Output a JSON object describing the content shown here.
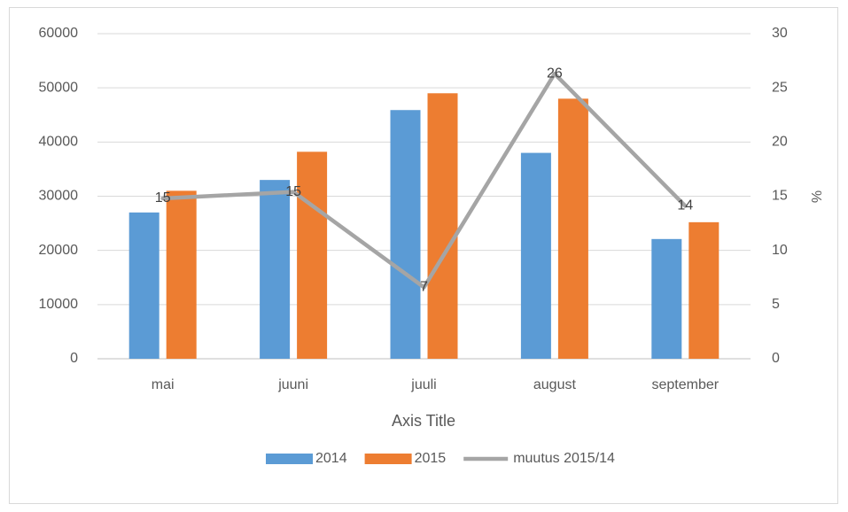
{
  "chart_data": {
    "type": "bar_line",
    "categories": [
      "mai",
      "juuni",
      "juuli",
      "august",
      "september"
    ],
    "x_axis_title": "Axis Title",
    "y2_axis_title": "%",
    "series": [
      {
        "name": "2014",
        "type": "bar",
        "color": "#5b9bd5",
        "values": [
          27000,
          33000,
          45900,
          38000,
          22100
        ]
      },
      {
        "name": "2015",
        "type": "bar",
        "color": "#ed7d31",
        "values": [
          31000,
          38200,
          49000,
          48000,
          25200
        ]
      },
      {
        "name": "muutus 2015/14",
        "type": "line",
        "axis": "y2",
        "color": "#a5a5a5",
        "values": [
          14.8,
          15.4,
          6.6,
          26.3,
          14.1
        ],
        "value_labels": [
          "15",
          "15",
          "7",
          "26",
          "14"
        ]
      }
    ],
    "ylim": [
      0,
      60000
    ],
    "yticks": [
      0,
      10000,
      20000,
      30000,
      40000,
      50000,
      60000
    ],
    "y2lim": [
      0,
      30
    ],
    "y2ticks": [
      0,
      5,
      10,
      15,
      20,
      25,
      30
    ],
    "grid": true,
    "legend": "bottom"
  }
}
